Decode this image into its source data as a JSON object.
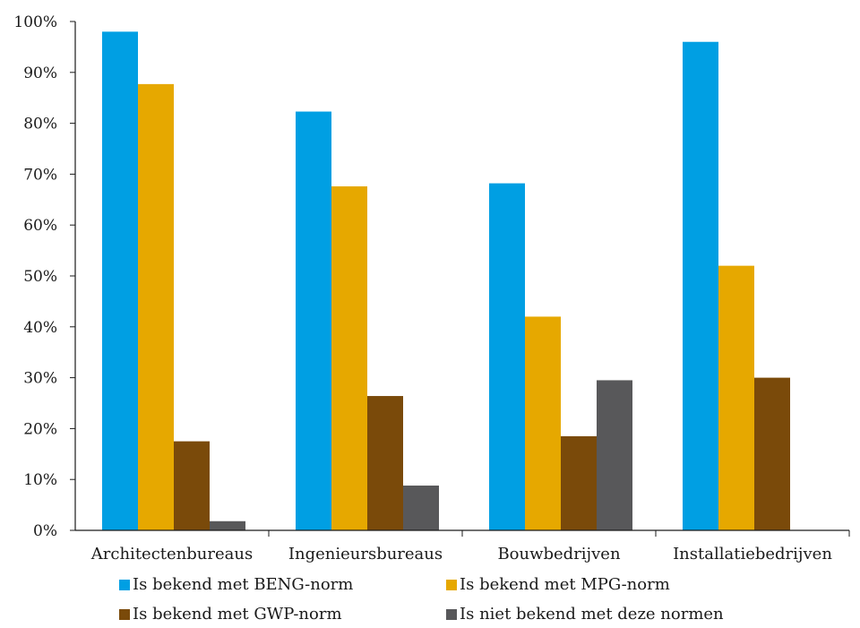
{
  "chart_data": {
    "type": "bar",
    "title": "",
    "xlabel": "",
    "ylabel": "",
    "ylim": [
      0,
      100
    ],
    "yticks": [
      "0%",
      "10%",
      "20%",
      "30%",
      "40%",
      "50%",
      "60%",
      "70%",
      "80%",
      "90%",
      "100%"
    ],
    "grid": false,
    "legend_position": "bottom",
    "categories": [
      "Architectenbureaus",
      "Ingenieursbureaus",
      "Bouwbedrijven",
      "Installatiebedrijven"
    ],
    "series": [
      {
        "name": "Is bekend met BENG-norm",
        "color": "#009fe3",
        "values": [
          98,
          82.3,
          68.2,
          96
        ]
      },
      {
        "name": "Is bekend met MPG-norm",
        "color": "#e6a800",
        "values": [
          87.7,
          67.6,
          42,
          52
        ]
      },
      {
        "name": "Is bekend met GWP-norm",
        "color": "#7a4a0a",
        "values": [
          17.5,
          26.4,
          18.5,
          30
        ]
      },
      {
        "name": "Is niet bekend met deze normen",
        "color": "#58585a",
        "values": [
          1.8,
          8.8,
          29.5,
          0
        ]
      }
    ]
  }
}
